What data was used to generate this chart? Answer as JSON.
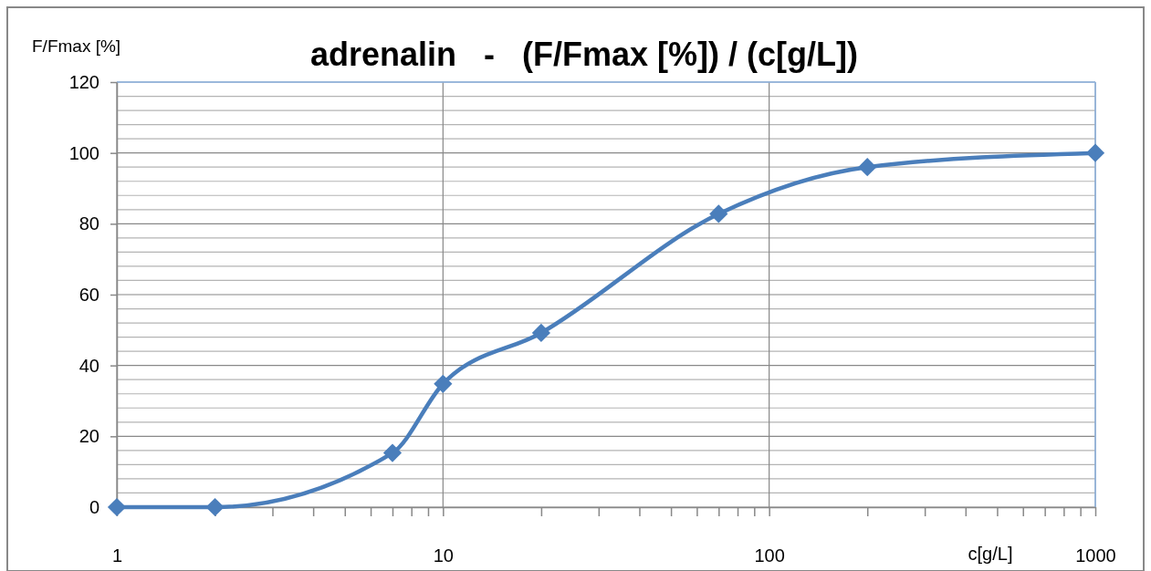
{
  "chart_data": {
    "type": "line",
    "title": "adrenalin   -   (F/Fmax [%]) / (c[g/L])",
    "xlabel": "c[g/L]",
    "ylabel": "F/Fmax [%]",
    "x": [
      1,
      2,
      7,
      10,
      20,
      70,
      200,
      1000
    ],
    "series": [
      {
        "color": "#4a7ebb",
        "values": [
          0,
          0,
          15.3,
          34.8,
          49.2,
          82.8,
          96,
          100
        ]
      }
    ],
    "log": "x",
    "xlim": [
      1,
      1000
    ],
    "xticks": [
      1,
      {
        "value": 2,
        "label": null
      },
      {
        "value": 3,
        "label": null
      },
      {
        "value": 4,
        "label": null
      },
      {
        "value": 5,
        "label": null
      },
      {
        "value": 6,
        "label": null
      },
      {
        "value": 7,
        "label": null
      },
      {
        "value": 8,
        "label": null
      },
      {
        "value": 9,
        "label": null
      },
      10,
      {
        "value": 20,
        "label": null
      },
      {
        "value": 30,
        "label": null
      },
      {
        "value": 40,
        "label": null
      },
      {
        "value": 50,
        "label": null
      },
      {
        "value": 60,
        "label": null
      },
      {
        "value": 70,
        "label": null
      },
      {
        "value": 80,
        "label": null
      },
      {
        "value": 90,
        "label": null
      },
      100,
      {
        "value": 200,
        "label": null
      },
      {
        "value": 300,
        "label": null
      },
      {
        "value": 400,
        "label": null
      },
      {
        "value": 500,
        "label": null
      },
      {
        "value": 600,
        "label": null
      },
      {
        "value": 700,
        "label": null
      },
      {
        "value": 800,
        "label": null
      },
      {
        "value": 900,
        "label": null
      },
      1000
    ],
    "ylim": [
      0,
      120
    ],
    "yticks": [
      0,
      {
        "value": 4,
        "label": null
      },
      {
        "value": 8,
        "label": null
      },
      {
        "value": 12,
        "label": null
      },
      {
        "value": 16,
        "label": null
      },
      20,
      {
        "value": 24,
        "label": null
      },
      {
        "value": 28,
        "label": null
      },
      {
        "value": 32,
        "label": null
      },
      {
        "value": 36,
        "label": null
      },
      40,
      {
        "value": 44,
        "label": null
      },
      {
        "value": 48,
        "label": null
      },
      {
        "value": 52,
        "label": null
      },
      {
        "value": 56,
        "label": null
      },
      60,
      {
        "value": 64,
        "label": null
      },
      {
        "value": 68,
        "label": null
      },
      {
        "value": 72,
        "label": null
      },
      {
        "value": 76,
        "label": null
      },
      80,
      {
        "value": 84,
        "label": null
      },
      {
        "value": 88,
        "label": null
      },
      {
        "value": 92,
        "label": null
      },
      {
        "value": 96,
        "label": null
      },
      100,
      {
        "value": 104,
        "label": null
      },
      {
        "value": 108,
        "label": null
      },
      {
        "value": 112,
        "label": null
      },
      {
        "value": 116,
        "label": null
      },
      120
    ],
    "grid": true,
    "marker": "diamond",
    "line_style": "solid"
  }
}
